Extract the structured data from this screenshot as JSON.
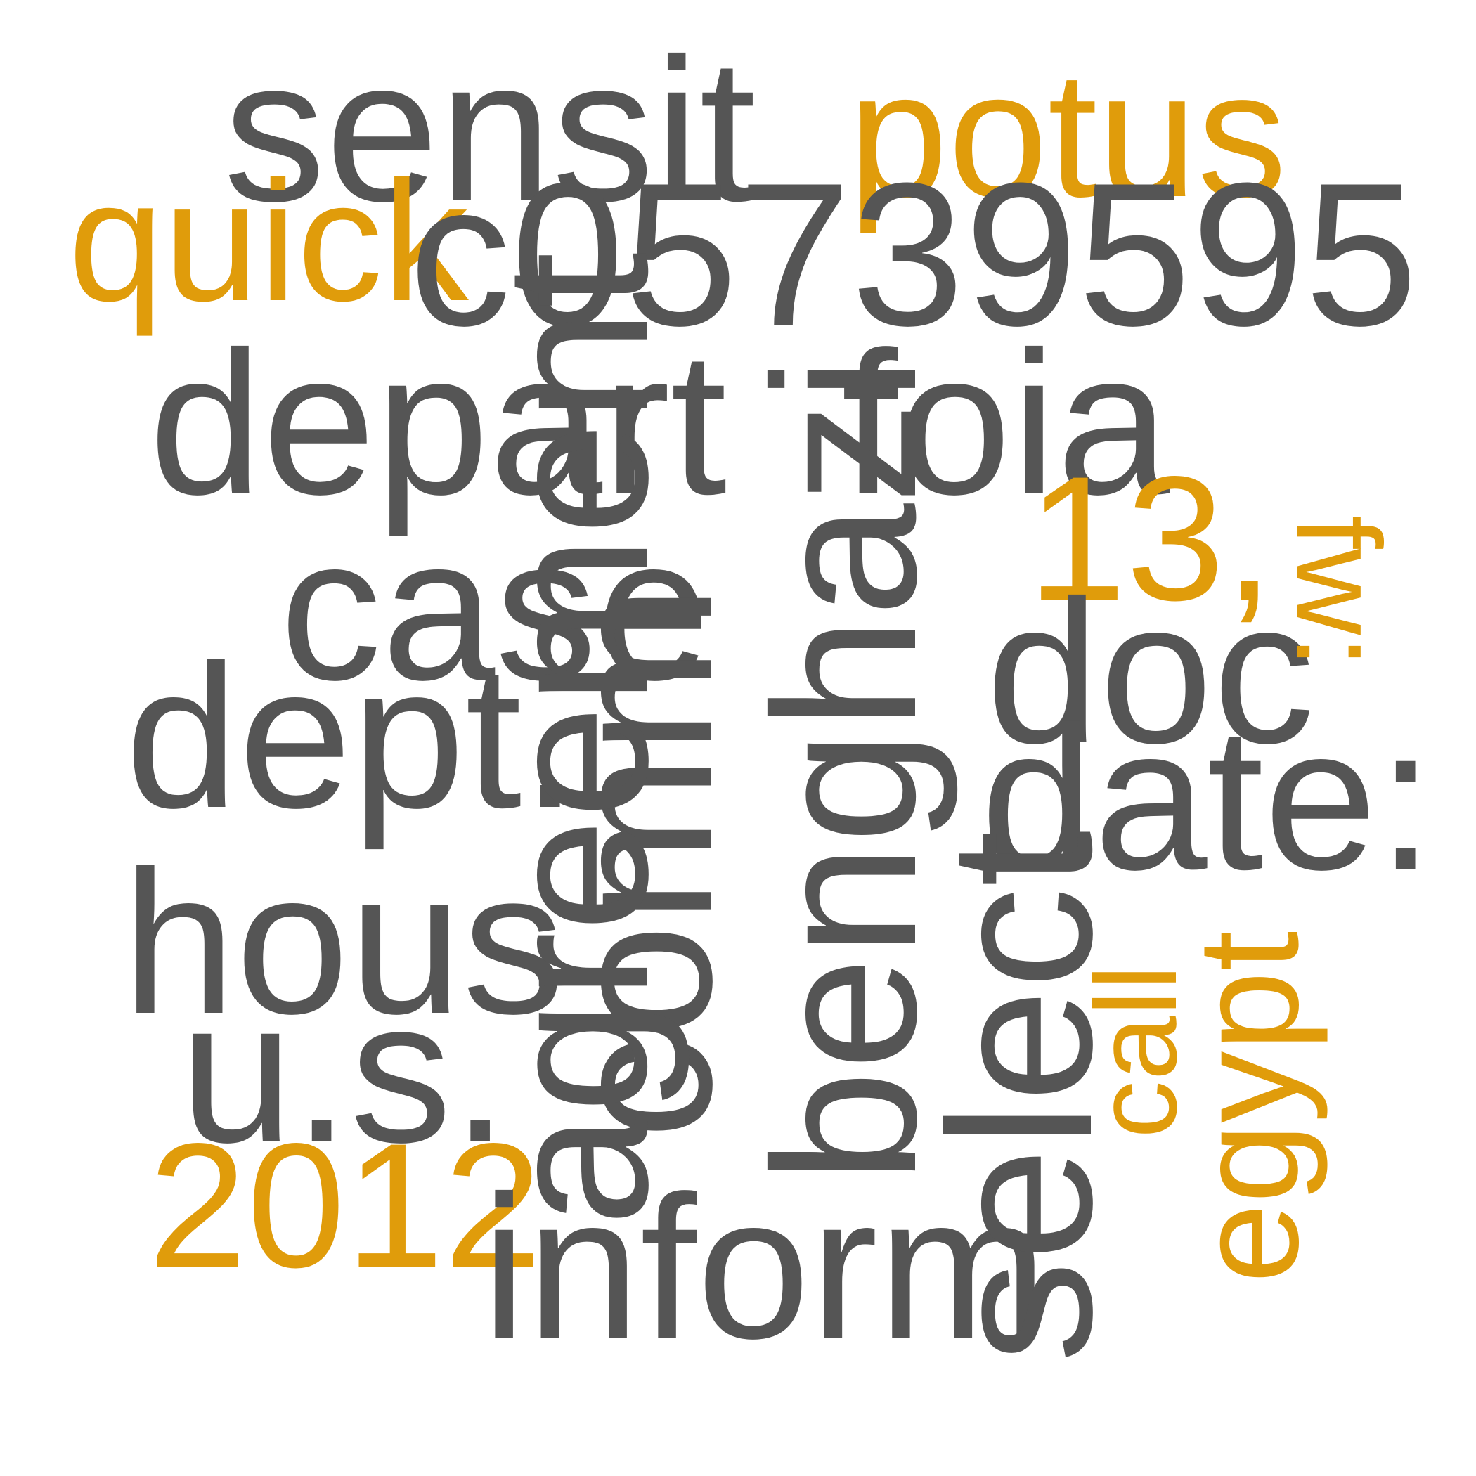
{
  "colors": {
    "primary": "#555555",
    "accent": "#e09c0b",
    "background": "#ffffff"
  },
  "words": [
    {
      "text": "sensit",
      "color": "primary"
    },
    {
      "text": "potus",
      "color": "accent"
    },
    {
      "text": "quick",
      "color": "accent"
    },
    {
      "text": "c05739595",
      "color": "primary"
    },
    {
      "text": "depart",
      "color": "primary"
    },
    {
      "text": "foia",
      "color": "primary"
    },
    {
      "text": "case",
      "color": "primary"
    },
    {
      "text": "13,",
      "color": "accent"
    },
    {
      "text": "fw:",
      "color": "accent"
    },
    {
      "text": "doc",
      "color": "primary"
    },
    {
      "text": "dept.",
      "color": "primary"
    },
    {
      "text": "date:",
      "color": "primary"
    },
    {
      "text": "hous",
      "color": "primary"
    },
    {
      "text": "u.s.",
      "color": "primary"
    },
    {
      "text": "2012",
      "color": "accent"
    },
    {
      "text": "inform",
      "color": "primary"
    },
    {
      "text": "comm",
      "color": "primary"
    },
    {
      "text": "agreement",
      "color": "primary"
    },
    {
      "text": "benghazi",
      "color": "primary"
    },
    {
      "text": "select",
      "color": "primary"
    },
    {
      "text": "call",
      "color": "accent"
    },
    {
      "text": "egypt",
      "color": "accent"
    }
  ]
}
